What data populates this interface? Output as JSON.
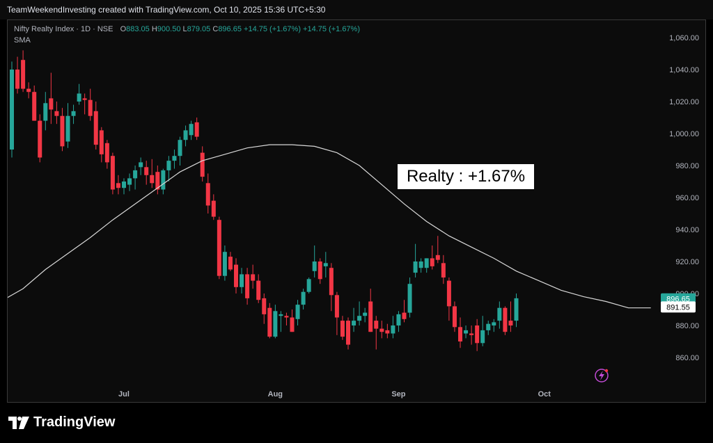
{
  "header": {
    "attribution": "TeamWeekendInvesting created with TradingView.com, Oct 10, 2025 15:36 UTC+5:30"
  },
  "legend": {
    "symbol": "Nifty Realty Index · 1D · NSE",
    "o_label": "O",
    "o_value": "883.05",
    "h_label": "H",
    "h_value": "900.50",
    "l_label": "L",
    "l_value": "879.05",
    "c_label": "C",
    "c_value": "896.65",
    "change": "+14.75 (+1.67%)",
    "change2": "+14.75 (+1.67%)",
    "sma_label": "SMA"
  },
  "annotation": "Realty : +1.67%",
  "price_tags": {
    "last": "896.65",
    "sma": "891.55"
  },
  "footer": {
    "brand": "TradingView"
  },
  "colors": {
    "up": "#26a69a",
    "down": "#f23645",
    "sma": "#d9d9d9",
    "background": "#0c0c0c"
  },
  "icons": {
    "alert": "lightning-icon",
    "logo": "tradingview-logo-icon"
  },
  "chart_data": {
    "type": "candlestick",
    "symbol": "Nifty Realty Index",
    "interval": "1D",
    "exchange": "NSE",
    "y_ticks": [
      "1,060.00",
      "1,040.00",
      "1,020.00",
      "1,000.00",
      "980.00",
      "960.00",
      "940.00",
      "920.00",
      "900.00",
      "880.00",
      "860.00"
    ],
    "y_tick_values": [
      1060,
      1040,
      1020,
      1000,
      980,
      960,
      940,
      920,
      900,
      880,
      860
    ],
    "x_ticks": [
      {
        "label": "Jul",
        "index": 20
      },
      {
        "label": "Aug",
        "index": 47
      },
      {
        "label": "Sep",
        "index": 69
      },
      {
        "label": "Oct",
        "index": 95
      }
    ],
    "ylim": [
      846,
      1066
    ],
    "candles": [
      [
        990,
        1045,
        985,
        1040
      ],
      [
        1040,
        1048,
        1025,
        1028
      ],
      [
        1046,
        1052,
        1026,
        1028
      ],
      [
        1028,
        1032,
        1022,
        1026
      ],
      [
        1026,
        1030,
        1008,
        1008
      ],
      [
        1008,
        1012,
        982,
        985
      ],
      [
        1008,
        1026,
        1002,
        1019
      ],
      [
        1022,
        1038,
        1006,
        1015
      ],
      [
        1014,
        1020,
        1006,
        1011
      ],
      [
        1011,
        1016,
        989,
        992
      ],
      [
        995,
        1019,
        991,
        1011
      ],
      [
        1011,
        1018,
        1006,
        1014
      ],
      [
        1020,
        1031,
        1018,
        1025
      ],
      [
        1022,
        1025,
        1012,
        1021
      ],
      [
        1021,
        1028,
        1008,
        1011
      ],
      [
        1014,
        1020,
        990,
        993
      ],
      [
        1002,
        1004,
        982,
        987
      ],
      [
        994,
        996,
        978,
        982
      ],
      [
        986,
        988,
        962,
        965
      ],
      [
        969,
        974,
        962,
        966
      ],
      [
        966,
        972,
        962,
        970
      ],
      [
        968,
        975,
        964,
        972
      ],
      [
        972,
        980,
        965,
        977
      ],
      [
        979,
        985,
        974,
        982
      ],
      [
        979,
        983,
        968,
        974
      ],
      [
        974,
        984,
        966,
        969
      ],
      [
        976,
        980,
        962,
        965
      ],
      [
        965,
        978,
        962,
        977
      ],
      [
        977,
        986,
        970,
        983
      ],
      [
        983,
        990,
        978,
        986
      ],
      [
        986,
        998,
        980,
        996
      ],
      [
        996,
        1005,
        992,
        1002
      ],
      [
        999,
        1008,
        996,
        1006
      ],
      [
        1007,
        1010,
        996,
        998
      ],
      [
        988,
        992,
        970,
        973
      ],
      [
        969,
        975,
        950,
        955
      ],
      [
        958,
        962,
        946,
        948
      ],
      [
        946,
        948,
        909,
        911
      ],
      [
        911,
        930,
        908,
        926
      ],
      [
        923,
        926,
        914,
        915
      ],
      [
        918,
        922,
        900,
        904
      ],
      [
        904,
        916,
        900,
        912
      ],
      [
        912,
        916,
        893,
        897
      ],
      [
        912,
        918,
        903,
        908
      ],
      [
        908,
        912,
        894,
        896
      ],
      [
        897,
        900,
        881,
        887
      ],
      [
        891,
        894,
        872,
        873
      ],
      [
        873,
        893,
        872,
        889
      ],
      [
        886,
        889,
        876,
        887
      ],
      [
        886,
        888,
        880,
        885
      ],
      [
        885,
        890,
        876,
        876
      ],
      [
        884,
        896,
        880,
        893
      ],
      [
        893,
        903,
        890,
        901
      ],
      [
        901,
        910,
        900,
        909
      ],
      [
        914,
        930,
        910,
        920
      ],
      [
        920,
        922,
        906,
        909
      ],
      [
        917,
        926,
        910,
        919
      ],
      [
        916,
        919,
        889,
        899
      ],
      [
        899,
        901,
        874,
        885
      ],
      [
        883,
        886,
        871,
        873
      ],
      [
        883,
        885,
        865,
        868
      ],
      [
        880,
        891,
        876,
        883
      ],
      [
        883,
        895,
        880,
        886
      ],
      [
        886,
        891,
        882,
        888
      ],
      [
        895,
        903,
        876,
        876
      ],
      [
        883,
        886,
        865,
        878
      ],
      [
        878,
        883,
        872,
        876
      ],
      [
        877,
        881,
        872,
        875
      ],
      [
        875,
        886,
        872,
        880
      ],
      [
        880,
        889,
        876,
        887
      ],
      [
        888,
        896,
        882,
        884
      ],
      [
        888,
        910,
        885,
        906
      ],
      [
        913,
        931,
        910,
        920
      ],
      [
        916,
        922,
        913,
        920
      ],
      [
        916,
        922,
        913,
        922
      ],
      [
        922,
        930,
        915,
        917
      ],
      [
        924,
        936,
        919,
        921
      ],
      [
        919,
        924,
        906,
        910
      ],
      [
        908,
        910,
        883,
        892
      ],
      [
        892,
        895,
        876,
        879
      ],
      [
        879,
        885,
        866,
        870
      ],
      [
        875,
        880,
        872,
        877
      ],
      [
        875,
        880,
        868,
        874
      ],
      [
        880,
        884,
        864,
        869
      ],
      [
        869,
        886,
        867,
        877
      ],
      [
        877,
        883,
        874,
        881
      ],
      [
        880,
        884,
        876,
        882
      ],
      [
        883,
        895,
        878,
        891
      ],
      [
        891,
        892,
        874,
        876
      ],
      [
        883,
        895,
        876,
        880
      ],
      [
        883,
        900,
        879,
        897
      ]
    ],
    "sma": [
      [
        -4,
        891
      ],
      [
        2,
        903
      ],
      [
        6,
        915
      ],
      [
        10,
        925
      ],
      [
        14,
        935
      ],
      [
        18,
        946
      ],
      [
        22,
        956
      ],
      [
        26,
        966
      ],
      [
        30,
        976
      ],
      [
        34,
        983
      ],
      [
        38,
        987
      ],
      [
        42,
        991
      ],
      [
        46,
        993
      ],
      [
        50,
        993
      ],
      [
        54,
        992
      ],
      [
        58,
        988
      ],
      [
        62,
        980
      ],
      [
        66,
        968
      ],
      [
        70,
        956
      ],
      [
        74,
        945
      ],
      [
        78,
        936
      ],
      [
        82,
        929
      ],
      [
        86,
        922
      ],
      [
        90,
        914
      ],
      [
        94,
        908
      ],
      [
        98,
        902
      ],
      [
        102,
        898
      ],
      [
        106,
        895
      ],
      [
        110,
        891
      ],
      [
        114,
        891
      ]
    ],
    "last_price": 896.65,
    "sma_last": 891.55
  }
}
